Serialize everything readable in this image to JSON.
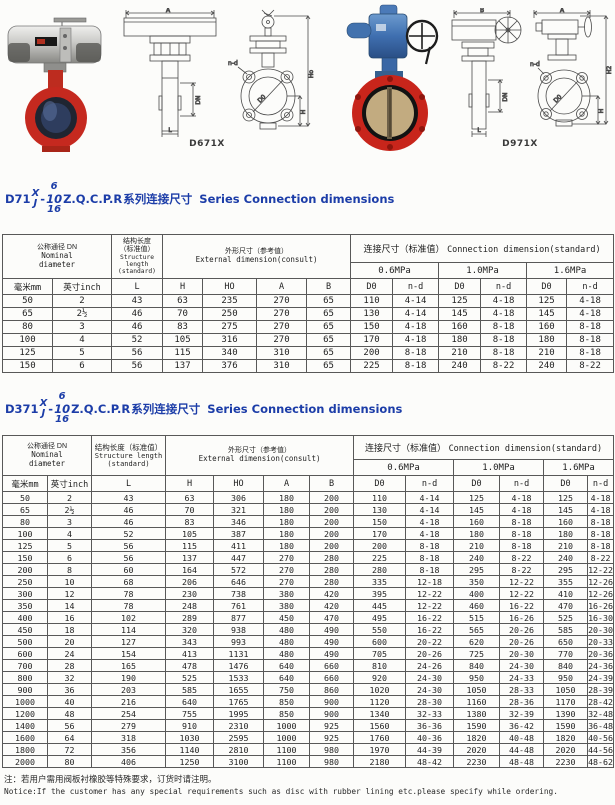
{
  "colors": {
    "heading_blue": "#1c3da8",
    "valve_red": "#c5291f",
    "actuator_blue": "#3f6fb0",
    "actuator_silver": "#c9c9c6",
    "table_border": "#585858"
  },
  "figures": {
    "label_d671x": "D671X",
    "label_d971x": "D971X",
    "dims": {
      "a": "A",
      "b": "B",
      "dn": "DN",
      "l": "L",
      "h": "H",
      "ho": "Ho",
      "h2": "H2",
      "d0": "D0",
      "nd": "n-d"
    }
  },
  "sections": [
    {
      "model_prefix": "D71",
      "stack_top": "X",
      "stack_bottom": "J",
      "dash": "-",
      "press": [
        "6",
        "10",
        "16"
      ],
      "model_suffix": "Z.Q.C.P.R",
      "title_cn": "系列连接尺寸",
      "title_en": "Series Connection dimensions"
    },
    {
      "model_prefix": "D371",
      "stack_top": "X",
      "stack_bottom": "J",
      "dash": "-",
      "press": [
        "6",
        "10",
        "16"
      ],
      "model_suffix": "Z.Q.C.P.R",
      "title_cn": "系列连接尺寸",
      "title_en": "Series Connection dimensions"
    }
  ],
  "table_header": {
    "dn_lines": [
      "公称通径 DN",
      "Nominal",
      "diameter"
    ],
    "len_lines_t1": [
      "结构长度",
      "（标准值）",
      "Structure",
      "length",
      "(standard)"
    ],
    "len_lines_t2": [
      "结构长度（标准值）",
      "Structure length",
      "(standard)"
    ],
    "ext_cn": "外形尺寸（参考值）",
    "ext_en": "External dimension(consult)",
    "conn_cn": "连接尺寸（标准值）",
    "conn_en": "Connection dimension(standard)",
    "mpa": [
      "0.6MPa",
      "1.0MPa",
      "1.6MPa"
    ],
    "sub": [
      "毫米mm",
      "英寸inch",
      "L",
      "H",
      "HO",
      "A",
      "B",
      "D0",
      "n-d",
      "D0",
      "n-d",
      "D0",
      "n-d"
    ]
  },
  "table1": {
    "rows": [
      [
        "50",
        "2",
        "43",
        "63",
        "235",
        "270",
        "65",
        "110",
        "4-14",
        "125",
        "4-18",
        "125",
        "4-18"
      ],
      [
        "65",
        "2½",
        "46",
        "70",
        "250",
        "270",
        "65",
        "130",
        "4-14",
        "145",
        "4-18",
        "145",
        "4-18"
      ],
      [
        "80",
        "3",
        "46",
        "83",
        "275",
        "270",
        "65",
        "150",
        "4-18",
        "160",
        "8-18",
        "160",
        "8-18"
      ],
      [
        "100",
        "4",
        "52",
        "105",
        "316",
        "270",
        "65",
        "170",
        "4-18",
        "180",
        "8-18",
        "180",
        "8-18"
      ],
      [
        "125",
        "5",
        "56",
        "115",
        "340",
        "310",
        "65",
        "200",
        "8-18",
        "210",
        "8-18",
        "210",
        "8-18"
      ],
      [
        "150",
        "6",
        "56",
        "137",
        "376",
        "310",
        "65",
        "225",
        "8-18",
        "240",
        "8-22",
        "240",
        "8-22"
      ]
    ]
  },
  "table2": {
    "rows": [
      [
        "50",
        "2",
        "43",
        "63",
        "306",
        "180",
        "200",
        "110",
        "4-14",
        "125",
        "4-18",
        "125",
        "4-18"
      ],
      [
        "65",
        "2½",
        "46",
        "70",
        "321",
        "180",
        "200",
        "130",
        "4-14",
        "145",
        "4-18",
        "145",
        "4-18"
      ],
      [
        "80",
        "3",
        "46",
        "83",
        "346",
        "180",
        "200",
        "150",
        "4-18",
        "160",
        "8-18",
        "160",
        "8-18"
      ],
      [
        "100",
        "4",
        "52",
        "105",
        "387",
        "180",
        "200",
        "170",
        "4-18",
        "180",
        "8-18",
        "180",
        "8-18"
      ],
      [
        "125",
        "5",
        "56",
        "115",
        "411",
        "180",
        "200",
        "200",
        "8-18",
        "210",
        "8-18",
        "210",
        "8-18"
      ],
      [
        "150",
        "6",
        "56",
        "137",
        "447",
        "270",
        "280",
        "225",
        "8-18",
        "240",
        "8-22",
        "240",
        "8-22"
      ],
      [
        "200",
        "8",
        "60",
        "164",
        "572",
        "270",
        "280",
        "280",
        "8-18",
        "295",
        "8-22",
        "295",
        "12-22"
      ],
      [
        "250",
        "10",
        "68",
        "206",
        "646",
        "270",
        "280",
        "335",
        "12-18",
        "350",
        "12-22",
        "355",
        "12-26"
      ],
      [
        "300",
        "12",
        "78",
        "230",
        "738",
        "380",
        "420",
        "395",
        "12-22",
        "400",
        "12-22",
        "410",
        "12-26"
      ],
      [
        "350",
        "14",
        "78",
        "248",
        "761",
        "380",
        "420",
        "445",
        "12-22",
        "460",
        "16-22",
        "470",
        "16-26"
      ],
      [
        "400",
        "16",
        "102",
        "289",
        "877",
        "450",
        "470",
        "495",
        "16-22",
        "515",
        "16-26",
        "525",
        "16-30"
      ],
      [
        "450",
        "18",
        "114",
        "320",
        "938",
        "480",
        "490",
        "550",
        "16-22",
        "565",
        "20-26",
        "585",
        "20-30"
      ],
      [
        "500",
        "20",
        "127",
        "343",
        "993",
        "480",
        "490",
        "600",
        "20-22",
        "620",
        "20-26",
        "650",
        "20-33"
      ],
      [
        "600",
        "24",
        "154",
        "413",
        "1131",
        "480",
        "490",
        "705",
        "20-26",
        "725",
        "20-30",
        "770",
        "20-36"
      ],
      [
        "700",
        "28",
        "165",
        "478",
        "1476",
        "640",
        "660",
        "810",
        "24-26",
        "840",
        "24-30",
        "840",
        "24-36"
      ],
      [
        "800",
        "32",
        "190",
        "525",
        "1533",
        "640",
        "660",
        "920",
        "24-30",
        "950",
        "24-33",
        "950",
        "24-39"
      ],
      [
        "900",
        "36",
        "203",
        "585",
        "1655",
        "750",
        "860",
        "1020",
        "24-30",
        "1050",
        "28-33",
        "1050",
        "28-39"
      ],
      [
        "1000",
        "40",
        "216",
        "640",
        "1765",
        "850",
        "900",
        "1120",
        "28-30",
        "1160",
        "28-36",
        "1170",
        "28-42"
      ],
      [
        "1200",
        "48",
        "254",
        "755",
        "1995",
        "850",
        "900",
        "1340",
        "32-33",
        "1380",
        "32-39",
        "1390",
        "32-48"
      ],
      [
        "1400",
        "56",
        "279",
        "910",
        "2310",
        "1000",
        "925",
        "1560",
        "36-36",
        "1590",
        "36-42",
        "1590",
        "36-48"
      ],
      [
        "1600",
        "64",
        "318",
        "1030",
        "2595",
        "1000",
        "925",
        "1760",
        "40-36",
        "1820",
        "40-48",
        "1820",
        "40-56"
      ],
      [
        "1800",
        "72",
        "356",
        "1140",
        "2810",
        "1100",
        "980",
        "1970",
        "44-39",
        "2020",
        "44-48",
        "2020",
        "44-56"
      ],
      [
        "2000",
        "80",
        "406",
        "1250",
        "3100",
        "1100",
        "980",
        "2180",
        "48-42",
        "2230",
        "48-48",
        "2230",
        "48-62"
      ]
    ]
  },
  "notes": {
    "cn": "注：若用户需用阀板衬橡胶等特殊要求，订货时请注明。",
    "en": "Notice:If the customer has any special requirements such as disc with rubber lining etc.please specify while ordering."
  }
}
